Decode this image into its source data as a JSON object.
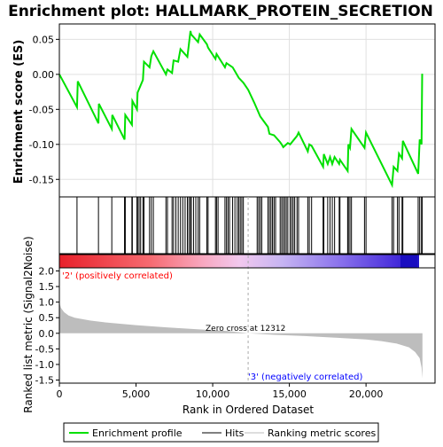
{
  "colors": {
    "es_line": "#00e000",
    "hits": "#000000",
    "metric_fill": "#bdbdbd",
    "pos_label": "#ff0000",
    "neg_label": "#0000ff",
    "frame": "#000000"
  },
  "legend": {
    "items": [
      {
        "label": "Enrichment profile",
        "color": "#00e000"
      },
      {
        "label": "Hits",
        "color": "#000000"
      },
      {
        "label": "Ranking metric scores",
        "color": "#bdbdbd"
      }
    ]
  },
  "chart_data": {
    "type": "line",
    "title": "Enrichment plot: HALLMARK_PROTEIN_SECRETION",
    "xlabel": "Rank in Ordered Dataset",
    "xlim": [
      0,
      24500
    ],
    "x_ticks": [
      0,
      5000,
      10000,
      15000,
      20000
    ],
    "x_tick_labels": [
      "0",
      "5,000",
      "10,000",
      "15,000",
      "20,000"
    ],
    "enrichment": {
      "ylabel": "Enrichment score (ES)",
      "ylim": [
        -0.175,
        0.072
      ],
      "y_ticks": [
        0.05,
        0.0,
        -0.05,
        -0.1,
        -0.15
      ],
      "y_tick_labels": [
        "0.05",
        "0.00",
        "-0.05",
        "-0.10",
        "-0.15"
      ],
      "series_x": [
        0,
        1150,
        1200,
        2550,
        2580,
        3420,
        3450,
        4250,
        4300,
        4730,
        4760,
        5060,
        5100,
        5450,
        5520,
        5880,
        6000,
        6130,
        6950,
        7050,
        7350,
        7450,
        7750,
        7900,
        8350,
        8550,
        8600,
        9050,
        9150,
        9620,
        9700,
        10180,
        10250,
        10800,
        10900,
        11300,
        11700,
        12000,
        12312,
        12700,
        13100,
        13600,
        13700,
        14000,
        14400,
        14500,
        14600,
        14900,
        15050,
        15500,
        15600,
        16200,
        16300,
        16450,
        17200,
        17250,
        17500,
        17650,
        17800,
        17950,
        18250,
        18300,
        18800,
        18850,
        18950,
        19050,
        19900,
        20000,
        21700,
        21800,
        22050,
        22150,
        22350,
        22400,
        23400,
        23500,
        23620,
        23660
      ],
      "series_y": [
        0.0,
        -0.047,
        -0.01,
        -0.07,
        -0.042,
        -0.078,
        -0.058,
        -0.093,
        -0.058,
        -0.072,
        -0.038,
        -0.05,
        -0.026,
        -0.008,
        0.018,
        0.01,
        0.026,
        0.033,
        0.0,
        0.007,
        0.002,
        0.02,
        0.018,
        0.036,
        0.025,
        0.062,
        0.057,
        0.046,
        0.057,
        0.043,
        0.038,
        0.022,
        0.029,
        0.01,
        0.016,
        0.01,
        -0.005,
        -0.012,
        -0.022,
        -0.04,
        -0.06,
        -0.075,
        -0.085,
        -0.087,
        -0.097,
        -0.1,
        -0.104,
        -0.098,
        -0.1,
        -0.088,
        -0.083,
        -0.11,
        -0.1,
        -0.102,
        -0.132,
        -0.114,
        -0.128,
        -0.118,
        -0.128,
        -0.118,
        -0.128,
        -0.122,
        -0.138,
        -0.1,
        -0.105,
        -0.078,
        -0.105,
        -0.083,
        -0.158,
        -0.132,
        -0.138,
        -0.113,
        -0.12,
        -0.095,
        -0.142,
        -0.093,
        -0.1,
        0.001
      ]
    },
    "hits": {
      "positions": [
        1150,
        2550,
        3420,
        4250,
        4300,
        4730,
        4760,
        5060,
        5100,
        5200,
        5300,
        5450,
        5520,
        5880,
        6000,
        6130,
        6950,
        7050,
        7350,
        7450,
        7600,
        7750,
        7900,
        8050,
        8200,
        8350,
        8450,
        8550,
        8600,
        8750,
        8900,
        9050,
        9150,
        9620,
        9700,
        10180,
        10250,
        10350,
        10800,
        10900,
        11000,
        11100,
        11300,
        11450,
        11600,
        11700,
        11800,
        11900,
        12000,
        12900,
        13000,
        13100,
        13200,
        13600,
        13700,
        13800,
        13900,
        14000,
        14100,
        14400,
        14500,
        14600,
        14700,
        14800,
        14900,
        15050,
        15150,
        15250,
        15350,
        15500,
        15600,
        16200,
        16300,
        16450,
        17200,
        17250,
        17500,
        17650,
        17800,
        17950,
        18250,
        18300,
        18800,
        18850,
        18950,
        19050,
        19900,
        20000,
        21700,
        21800,
        22050,
        22150,
        22350,
        22400,
        23400,
        23500,
        23620,
        23660
      ]
    },
    "ranked_metric": {
      "ylabel": "Ranked list metric (Signal2Noise)",
      "ylim": [
        -1.6,
        2.1
      ],
      "y_ticks": [
        2.0,
        1.5,
        1.0,
        0.5,
        0.0,
        -0.5,
        -1.0,
        -1.5
      ],
      "y_tick_labels": [
        "2.0",
        "1.5",
        "1.0",
        "0.5",
        "0.0",
        "-0.5",
        "-1.0",
        "-1.5"
      ],
      "x": [
        0,
        100,
        300,
        600,
        1000,
        2000,
        3000,
        5000,
        7000,
        9000,
        11000,
        12312,
        14000,
        16000,
        18000,
        20000,
        21000,
        22000,
        22800,
        23200,
        23500,
        23620,
        23680
      ],
      "y": [
        1.0,
        0.82,
        0.68,
        0.57,
        0.5,
        0.41,
        0.35,
        0.26,
        0.19,
        0.13,
        0.07,
        0.0,
        -0.05,
        -0.09,
        -0.14,
        -0.2,
        -0.25,
        -0.33,
        -0.45,
        -0.6,
        -0.8,
        -1.1,
        -1.45
      ],
      "zero_cross_label": "Zero cross at 12312",
      "zero_cross": 12312,
      "pos_label": "'2' (positively correlated)",
      "neg_label": "'3' (negatively correlated)"
    }
  }
}
